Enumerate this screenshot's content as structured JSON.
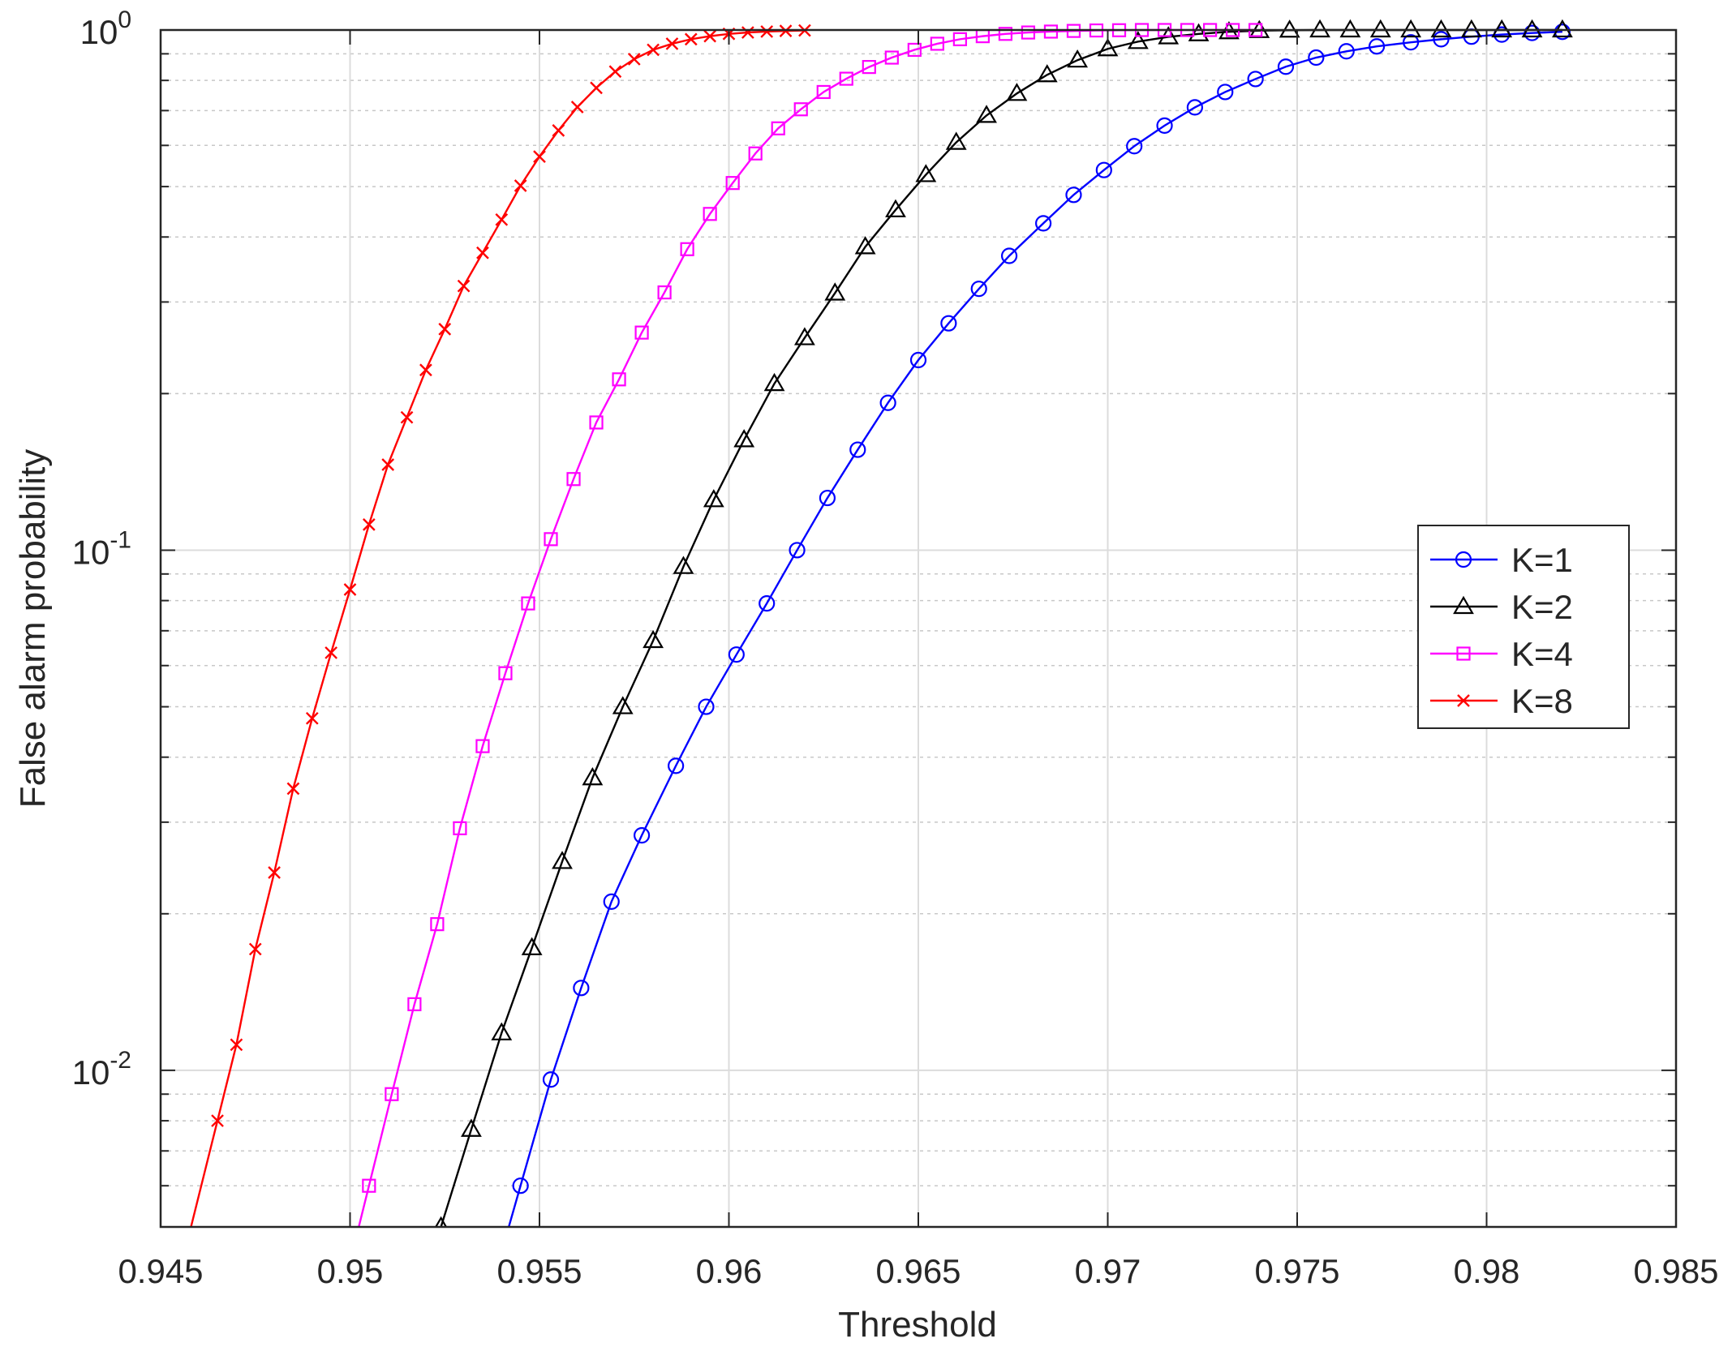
{
  "chart_data": {
    "type": "line",
    "title": "",
    "xlabel": "Threshold",
    "ylabel": "False alarm probability",
    "xlim": [
      0.945,
      0.985
    ],
    "ylim": [
      0.005,
      1
    ],
    "yscale": "log",
    "grid": true,
    "minor_grid": true,
    "legend_position": "right-middle",
    "x_ticks": [
      "0.945",
      "0.95",
      "0.955",
      "0.96",
      "0.965",
      "0.97",
      "0.975",
      "0.98",
      "0.985"
    ],
    "y_ticks": [
      {
        "base": "10",
        "exp": "0",
        "value": 1
      },
      {
        "base": "10",
        "exp": "-1",
        "value": 0.1
      },
      {
        "base": "10",
        "exp": "-2",
        "value": 0.01
      }
    ],
    "series": [
      {
        "name": "K=1",
        "color": "#0000ff",
        "marker": "circle",
        "x": [
          0.9545,
          0.9553,
          0.9561,
          0.9569,
          0.9577,
          0.9586,
          0.9594,
          0.9602,
          0.961,
          0.9618,
          0.9626,
          0.9634,
          0.9642,
          0.965,
          0.9658,
          0.9666,
          0.9674,
          0.9683,
          0.9691,
          0.9699,
          0.9707,
          0.9715,
          0.9723,
          0.9731,
          0.9739,
          0.9747,
          0.9755,
          0.9763,
          0.9771,
          0.978,
          0.9788,
          0.9796,
          0.9804,
          0.9812,
          0.982
        ],
        "y": [
          0.006,
          0.0096,
          0.0144,
          0.0211,
          0.0283,
          0.0385,
          0.05,
          0.063,
          0.079,
          0.1,
          0.126,
          0.156,
          0.192,
          0.232,
          0.273,
          0.318,
          0.368,
          0.425,
          0.482,
          0.538,
          0.598,
          0.655,
          0.71,
          0.76,
          0.805,
          0.85,
          0.885,
          0.91,
          0.93,
          0.947,
          0.96,
          0.971,
          0.98,
          0.987,
          0.992
        ]
      },
      {
        "name": "K=2",
        "color": "#000000",
        "marker": "triangle",
        "x": [
          0.9524,
          0.9532,
          0.954,
          0.9548,
          0.9556,
          0.9564,
          0.9572,
          0.958,
          0.9588,
          0.9596,
          0.9604,
          0.9612,
          0.962,
          0.9628,
          0.9636,
          0.9644,
          0.9652,
          0.966,
          0.9668,
          0.9676,
          0.9684,
          0.9692,
          0.97,
          0.9708,
          0.9716,
          0.9724,
          0.9732,
          0.974,
          0.9748,
          0.9756,
          0.9764,
          0.9772,
          0.978,
          0.9788,
          0.9796,
          0.9804,
          0.9812,
          0.982
        ],
        "y": [
          0.005,
          0.0077,
          0.0118,
          0.0172,
          0.0252,
          0.0365,
          0.05,
          0.067,
          0.093,
          0.125,
          0.163,
          0.209,
          0.256,
          0.312,
          0.383,
          0.451,
          0.527,
          0.608,
          0.685,
          0.755,
          0.82,
          0.875,
          0.92,
          0.95,
          0.97,
          0.983,
          0.992,
          0.997,
          0.999,
          1,
          1,
          1,
          1,
          1,
          1,
          1,
          1,
          1
        ]
      },
      {
        "name": "K=4",
        "color": "#ff00ff",
        "marker": "square",
        "x": [
          0.9505,
          0.9511,
          0.9517,
          0.9523,
          0.9529,
          0.9535,
          0.9541,
          0.9547,
          0.9553,
          0.9559,
          0.9565,
          0.9571,
          0.9577,
          0.9583,
          0.9589,
          0.9595,
          0.9601,
          0.9607,
          0.9613,
          0.9619,
          0.9625,
          0.9631,
          0.9637,
          0.9643,
          0.9649,
          0.9655,
          0.9661,
          0.9667,
          0.9673,
          0.9679,
          0.9685,
          0.9691,
          0.9697,
          0.9703,
          0.9709,
          0.9715,
          0.9721,
          0.9727,
          0.9733,
          0.9739
        ],
        "y": [
          0.006,
          0.009,
          0.0134,
          0.0191,
          0.0292,
          0.042,
          0.058,
          0.079,
          0.105,
          0.137,
          0.176,
          0.213,
          0.262,
          0.313,
          0.379,
          0.443,
          0.508,
          0.579,
          0.647,
          0.704,
          0.76,
          0.806,
          0.849,
          0.885,
          0.916,
          0.941,
          0.96,
          0.973,
          0.983,
          0.989,
          0.993,
          0.996,
          0.998,
          0.999,
          1,
          1,
          1,
          1,
          1,
          1
        ]
      },
      {
        "name": "K=8",
        "color": "#ff0000",
        "marker": "x",
        "x": [
          0.9465,
          0.947,
          0.9475,
          0.948,
          0.9485,
          0.949,
          0.9495,
          0.95,
          0.9505,
          0.951,
          0.9515,
          0.952,
          0.9525,
          0.953,
          0.9535,
          0.954,
          0.9545,
          0.955,
          0.9555,
          0.956,
          0.9565,
          0.957,
          0.9575,
          0.958,
          0.9585,
          0.959,
          0.9595,
          0.96,
          0.9605,
          0.961,
          0.9615,
          0.962
        ],
        "y": [
          0.008,
          0.0112,
          0.0171,
          0.024,
          0.0348,
          0.0475,
          0.0635,
          0.084,
          0.112,
          0.146,
          0.18,
          0.222,
          0.266,
          0.322,
          0.373,
          0.432,
          0.502,
          0.571,
          0.641,
          0.711,
          0.774,
          0.832,
          0.879,
          0.916,
          0.941,
          0.96,
          0.973,
          0.983,
          0.989,
          0.993,
          0.996,
          0.998
        ]
      }
    ]
  }
}
